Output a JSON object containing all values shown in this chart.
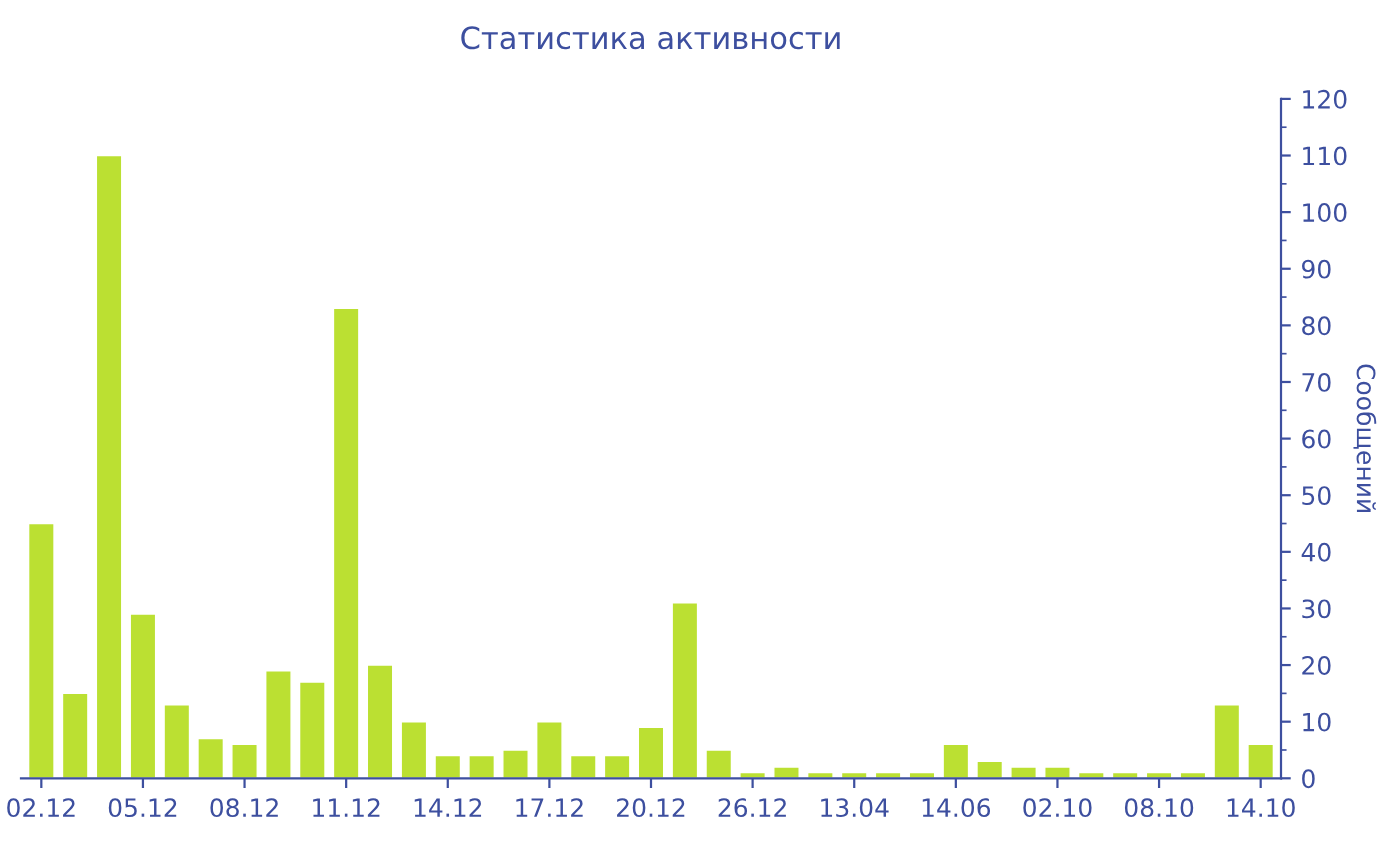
{
  "chart_data": {
    "type": "bar",
    "title": "Статистика активности",
    "ylabel": "Сообщений",
    "categories": [
      "02.12",
      null,
      null,
      "05.12",
      null,
      null,
      "08.12",
      null,
      null,
      "11.12",
      null,
      null,
      "14.12",
      null,
      null,
      "17.12",
      null,
      null,
      "20.12",
      null,
      null,
      "26.12",
      null,
      null,
      "13.04",
      null,
      null,
      "14.06",
      null,
      null,
      "02.10",
      null,
      null,
      "08.10",
      null,
      null,
      "14.10"
    ],
    "values": [
      45,
      15,
      110,
      29,
      13,
      7,
      6,
      19,
      17,
      83,
      20,
      10,
      4,
      4,
      5,
      10,
      4,
      4,
      9,
      31,
      5,
      1,
      2,
      1,
      1,
      1,
      1,
      6,
      3,
      2,
      2,
      1,
      1,
      1,
      1,
      13,
      6
    ],
    "color": "#bbe032",
    "ylim": [
      0,
      120
    ],
    "yticks": [
      0,
      10,
      20,
      30,
      40,
      50,
      60,
      70,
      80,
      90,
      100,
      110,
      120
    ],
    "grid": false,
    "legend": false
  }
}
